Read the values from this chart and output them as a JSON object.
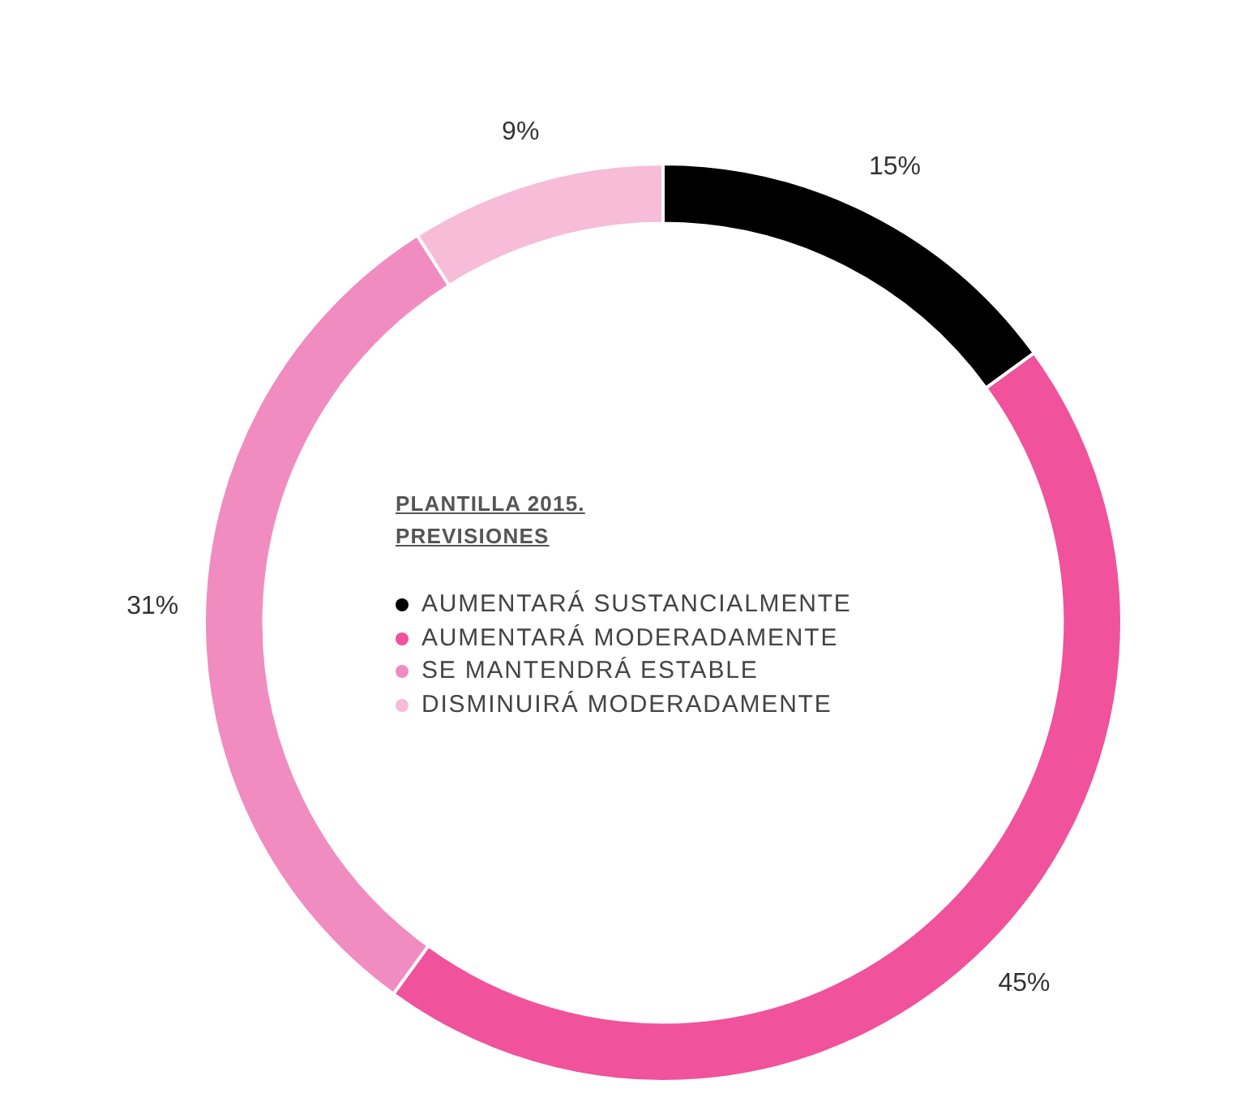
{
  "chart_data": {
    "type": "donut",
    "categories": [
      "AUMENTARÁ SUSTANCIALMENTE",
      "AUMENTARÁ MODERADAMENTE",
      "SE MANTENDRÁ ESTABLE",
      "DISMINUIRÁ MODERADAMENTE"
    ],
    "values": [
      15,
      45,
      31,
      9
    ],
    "colors": [
      "#000000",
      "#f0529b",
      "#f08cbf",
      "#f7bcd8"
    ],
    "value_labels": [
      "15%",
      "45%",
      "31%",
      "9%"
    ],
    "legend_title": "PLANTILLA 2015. PREVISIONES",
    "legend": "center"
  }
}
